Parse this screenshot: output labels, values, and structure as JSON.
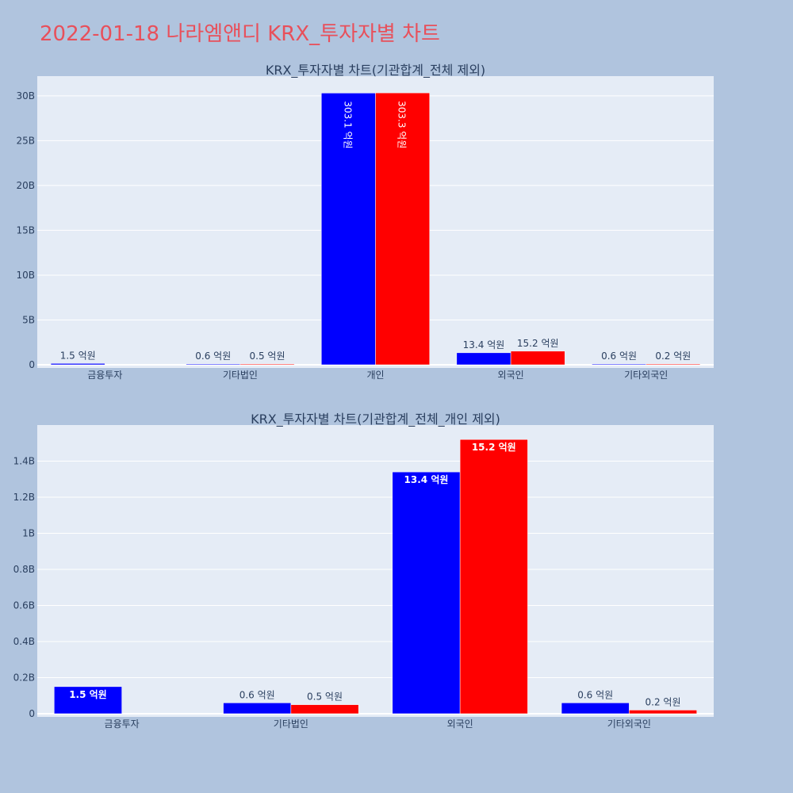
{
  "title": "2022-01-18 나라엠앤디 KRX_투자자별 차트",
  "chart_data": [
    {
      "type": "bar",
      "title": "KRX_투자자별 차트(기관합계_전체 제외)",
      "categories": [
        "금융투자",
        "기타법인",
        "개인",
        "외국인",
        "기타외국인"
      ],
      "series": [
        {
          "color": "#0000ff",
          "values": [
            150000000,
            60000000,
            30310000000,
            1340000000,
            60000000
          ],
          "labels": [
            "1.5 억원",
            "0.6 억원",
            "303.1 억원",
            "13.4 억원",
            "0.6 억원"
          ]
        },
        {
          "color": "#ff0000",
          "values": [
            0,
            50000000,
            30330000000,
            1520000000,
            20000000
          ],
          "labels": [
            "",
            "0.5 억원",
            "303.3 억원",
            "15.2 억원",
            "0.2 억원"
          ]
        }
      ],
      "ylim": [
        0,
        32200000000
      ],
      "yticks": [
        0,
        5000000000,
        10000000000,
        15000000000,
        20000000000,
        25000000000,
        30000000000
      ],
      "ytick_labels": [
        "0",
        "5B",
        "10B",
        "15B",
        "20B",
        "25B",
        "30B"
      ],
      "grid": true
    },
    {
      "type": "bar",
      "title": "KRX_투자자별 차트(기관합계_전체_개인 제외)",
      "categories": [
        "금융투자",
        "기타법인",
        "외국인",
        "기타외국인"
      ],
      "series": [
        {
          "color": "#0000ff",
          "values": [
            150000000,
            60000000,
            1340000000,
            60000000
          ],
          "labels": [
            "1.5 억원",
            "0.6 억원",
            "13.4 억원",
            "0.6 억원"
          ]
        },
        {
          "color": "#ff0000",
          "values": [
            0,
            50000000,
            1520000000,
            20000000
          ],
          "labels": [
            "",
            "0.5 억원",
            "15.2 억원",
            "0.2 억원"
          ]
        }
      ],
      "ylim": [
        0,
        1600000000
      ],
      "yticks": [
        0,
        200000000,
        400000000,
        600000000,
        800000000,
        1000000000,
        1200000000,
        1400000000
      ],
      "ytick_labels": [
        "0",
        "0.2B",
        "0.4B",
        "0.6B",
        "0.8B",
        "1B",
        "1.2B",
        "1.4B"
      ],
      "grid": true
    }
  ]
}
